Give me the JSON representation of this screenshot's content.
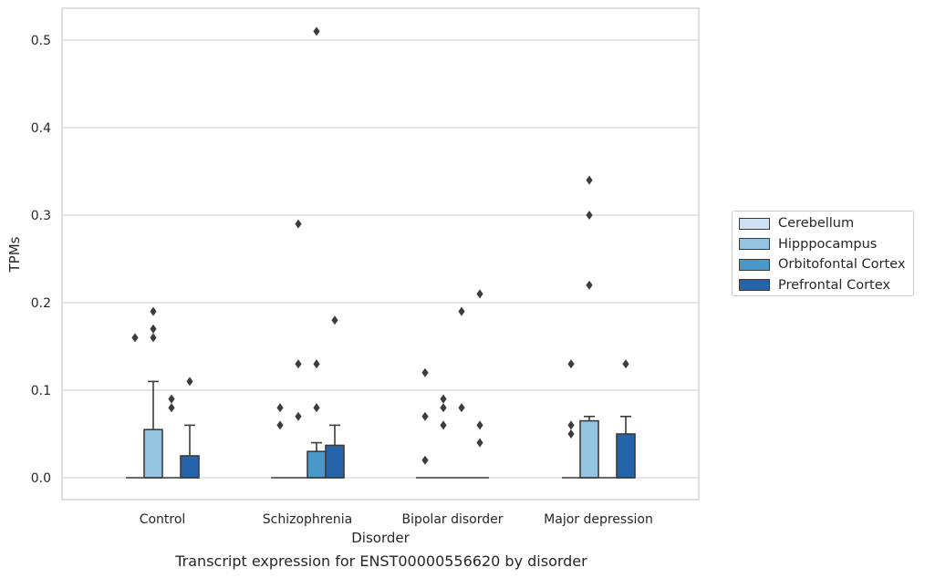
{
  "chart_data": {
    "type": "box",
    "title": "",
    "caption": "Transcript expression for ENST00000556620 by disorder",
    "xlabel": "Disorder",
    "ylabel": "TPMs",
    "ylim": [
      -0.025,
      0.537
    ],
    "yticks": [
      "0.0",
      "0.1",
      "0.2",
      "0.3",
      "0.4",
      "0.5"
    ],
    "ytick_values": [
      0.0,
      0.1,
      0.2,
      0.3,
      0.4,
      0.5
    ],
    "grid": "horizontal",
    "legend_position": "center-right",
    "categories": [
      "Control",
      "Schizophrenia",
      "Bipolar disorder",
      "Major depression"
    ],
    "series": [
      {
        "name": "Cerebellum",
        "color": "#d0e1f2",
        "boxes": [
          {
            "q1": 0,
            "median": 0,
            "q3": 0,
            "whisker_low": 0,
            "whisker_high": 0,
            "outliers": [
              0.16
            ]
          },
          {
            "q1": 0,
            "median": 0,
            "q3": 0,
            "whisker_low": 0,
            "whisker_high": 0,
            "outliers": [
              0.06,
              0.08
            ]
          },
          {
            "q1": 0,
            "median": 0,
            "q3": 0,
            "whisker_low": 0,
            "whisker_high": 0,
            "outliers": [
              0.02,
              0.07,
              0.12
            ]
          },
          {
            "q1": 0,
            "median": 0,
            "q3": 0,
            "whisker_low": 0,
            "whisker_high": 0,
            "outliers": [
              0.05,
              0.06,
              0.13
            ]
          }
        ]
      },
      {
        "name": "Hipppocampus",
        "color": "#94c4df",
        "boxes": [
          {
            "q1": 0,
            "median": 0,
            "q3": 0.055,
            "whisker_low": 0,
            "whisker_high": 0.11,
            "outliers": [
              0.16,
              0.17,
              0.19
            ]
          },
          {
            "q1": 0,
            "median": 0,
            "q3": 0,
            "whisker_low": 0,
            "whisker_high": 0,
            "outliers": [
              0.07,
              0.13,
              0.29
            ]
          },
          {
            "q1": 0,
            "median": 0,
            "q3": 0,
            "whisker_low": 0,
            "whisker_high": 0,
            "outliers": [
              0.06,
              0.08,
              0.09
            ]
          },
          {
            "q1": 0,
            "median": 0,
            "q3": 0.065,
            "whisker_low": 0,
            "whisker_high": 0.07,
            "outliers": [
              0.22,
              0.3,
              0.34
            ]
          }
        ]
      },
      {
        "name": "Orbitofontal Cortex",
        "color": "#4a98c9",
        "boxes": [
          {
            "q1": 0,
            "median": 0,
            "q3": 0,
            "whisker_low": 0,
            "whisker_high": 0,
            "outliers": [
              0.08,
              0.09
            ]
          },
          {
            "q1": 0,
            "median": 0,
            "q3": 0.03,
            "whisker_low": 0,
            "whisker_high": 0.04,
            "outliers": [
              0.08,
              0.13,
              0.51
            ]
          },
          {
            "q1": 0,
            "median": 0,
            "q3": 0,
            "whisker_low": 0,
            "whisker_high": 0,
            "outliers": [
              0.08,
              0.19
            ]
          },
          {
            "q1": 0,
            "median": 0,
            "q3": 0,
            "whisker_low": 0,
            "whisker_high": 0,
            "outliers": []
          }
        ]
      },
      {
        "name": "Prefrontal Cortex",
        "color": "#2364aa",
        "boxes": [
          {
            "q1": 0,
            "median": 0,
            "q3": 0.025,
            "whisker_low": 0,
            "whisker_high": 0.06,
            "outliers": [
              0.11
            ]
          },
          {
            "q1": 0,
            "median": 0,
            "q3": 0.037,
            "whisker_low": 0,
            "whisker_high": 0.06,
            "outliers": [
              0.18
            ]
          },
          {
            "q1": 0,
            "median": 0,
            "q3": 0,
            "whisker_low": 0,
            "whisker_high": 0,
            "outliers": [
              0.04,
              0.06,
              0.21
            ]
          },
          {
            "q1": 0,
            "median": 0,
            "q3": 0.05,
            "whisker_low": 0,
            "whisker_high": 0.07,
            "outliers": [
              0.13
            ]
          }
        ]
      }
    ]
  }
}
